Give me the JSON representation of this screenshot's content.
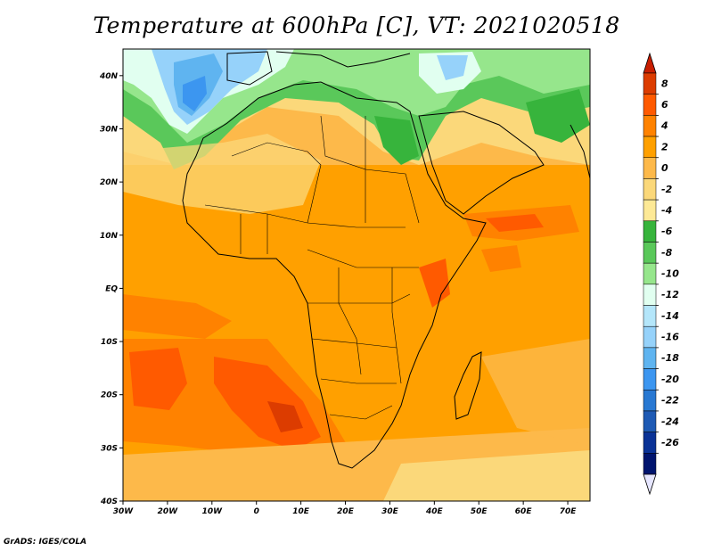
{
  "title": "Temperature at 600hPa [C], VT: 2021020518",
  "credit": "GrADS: IGES/COLA",
  "map": {
    "lat_labels": [
      "40N",
      "30N",
      "20N",
      "10N",
      "EQ",
      "10S",
      "20S",
      "30S",
      "40S"
    ],
    "lon_labels": [
      "30W",
      "20W",
      "10W",
      "0",
      "10E",
      "20E",
      "30E",
      "40E",
      "50E",
      "60E",
      "70E"
    ],
    "lon_range": [
      -30,
      75
    ],
    "lat_range": [
      -40,
      45
    ]
  },
  "colorbar": {
    "labels": [
      "8",
      "6",
      "4",
      "2",
      "0",
      "-2",
      "-4",
      "-6",
      "-8",
      "-10",
      "-12",
      "-14",
      "-16",
      "-18",
      "-20",
      "-22",
      "-24",
      "-26"
    ],
    "colors": [
      "#dc3c00",
      "#ff5a00",
      "#ff8200",
      "#ffa000",
      "#fdb94a",
      "#fbd87a",
      "#fde996",
      "#37b43c",
      "#5ac85a",
      "#96e68c",
      "#e1fff0",
      "#b4e6fa",
      "#96d2fa",
      "#5fb4f0",
      "#3c96f0",
      "#2878d2",
      "#1e5ab4",
      "#0a3296",
      "#00146e"
    ],
    "over_color": "#c81e00",
    "under_color": "#e6e6ff"
  }
}
